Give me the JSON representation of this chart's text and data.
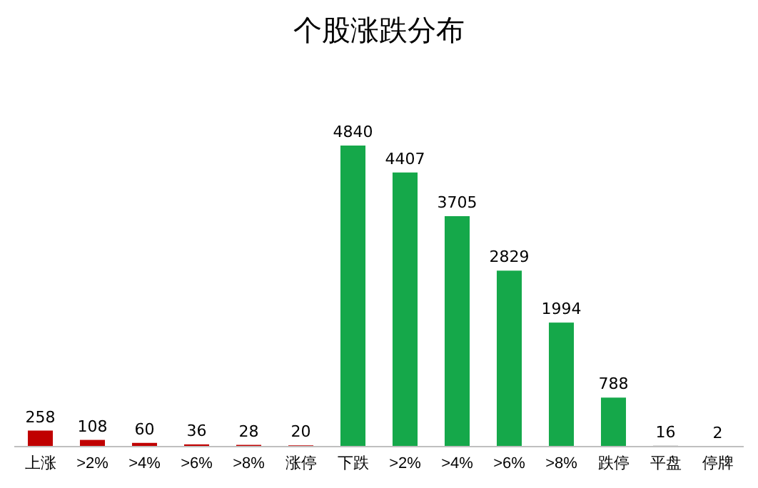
{
  "chart_data": {
    "type": "bar",
    "title": "个股涨跌分布",
    "categories": [
      "上涨",
      ">2%",
      ">4%",
      ">6%",
      ">8%",
      "涨停",
      "下跌",
      ">2%",
      ">4%",
      ">6%",
      ">8%",
      "跌停",
      "平盘",
      "停牌"
    ],
    "values": [
      258,
      108,
      60,
      36,
      28,
      20,
      4840,
      4407,
      3705,
      2829,
      1994,
      788,
      16,
      2
    ],
    "colors": [
      "#c00000",
      "#c00000",
      "#c00000",
      "#c00000",
      "#c00000",
      "#c00000",
      "#15a84a",
      "#15a84a",
      "#15a84a",
      "#15a84a",
      "#15a84a",
      "#15a84a",
      "#a6a6a6",
      "#7f7f7f"
    ],
    "tick_labels": "x",
    "data_labels": true
  }
}
